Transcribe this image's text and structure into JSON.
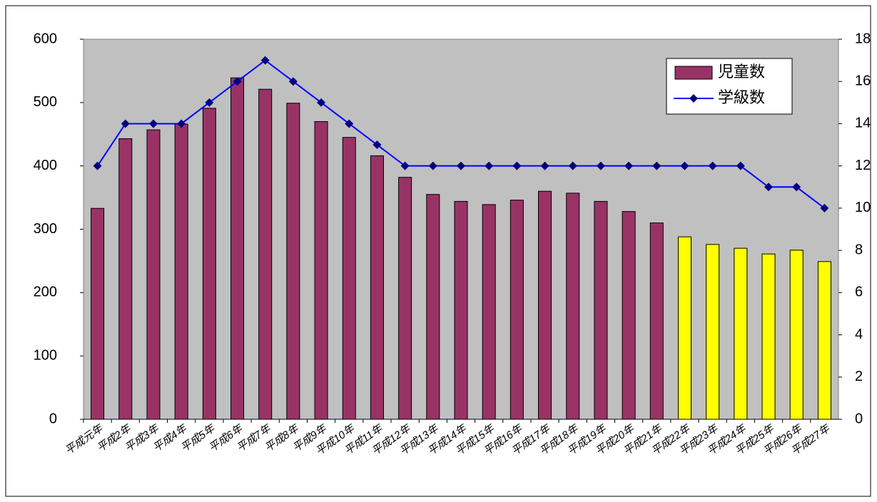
{
  "chart_data": {
    "type": "bar-line",
    "categories": [
      "平成元年",
      "平成2年",
      "平成3年",
      "平成4年",
      "平成5年",
      "平成6年",
      "平成7年",
      "平成8年",
      "平成9年",
      "平成10年",
      "平成11年",
      "平成12年",
      "平成13年",
      "平成14年",
      "平成15年",
      "平成16年",
      "平成17年",
      "平成18年",
      "平成19年",
      "平成20年",
      "平成21年",
      "平成22年",
      "平成23年",
      "平成24年",
      "平成25年",
      "平成26年",
      "平成27年"
    ],
    "series": [
      {
        "name": "児童数",
        "type": "bar",
        "color": "#993366",
        "colors": [
          "#993366",
          "#993366",
          "#993366",
          "#993366",
          "#993366",
          "#993366",
          "#993366",
          "#993366",
          "#993366",
          "#993366",
          "#993366",
          "#993366",
          "#993366",
          "#993366",
          "#993366",
          "#993366",
          "#993366",
          "#993366",
          "#993366",
          "#993366",
          "#993366",
          "#ffff00",
          "#ffff00",
          "#ffff00",
          "#ffff00",
          "#ffff00",
          "#ffff00"
        ],
        "values": [
          333,
          443,
          457,
          466,
          491,
          539,
          521,
          499,
          470,
          445,
          416,
          382,
          355,
          344,
          339,
          346,
          360,
          357,
          344,
          328,
          310,
          288,
          276,
          270,
          261,
          267,
          249
        ]
      },
      {
        "name": "学級数",
        "type": "line",
        "axis": "y2",
        "color": "#0000ff",
        "marker_color": "#000080",
        "values": [
          12,
          14,
          14,
          14,
          15,
          16,
          17,
          16,
          15,
          14,
          13,
          12,
          12,
          12,
          12,
          12,
          12,
          12,
          12,
          12,
          12,
          12,
          12,
          12,
          11,
          11,
          10
        ]
      }
    ],
    "ylim": [
      0,
      600
    ],
    "yticks": [
      0,
      100,
      200,
      300,
      400,
      500,
      600
    ],
    "y2lim": [
      0,
      18
    ],
    "y2ticks": [
      0,
      2,
      4,
      6,
      8,
      10,
      12,
      14,
      16,
      18
    ],
    "plot_background": "#c0c0c0",
    "legend": "upper right"
  }
}
